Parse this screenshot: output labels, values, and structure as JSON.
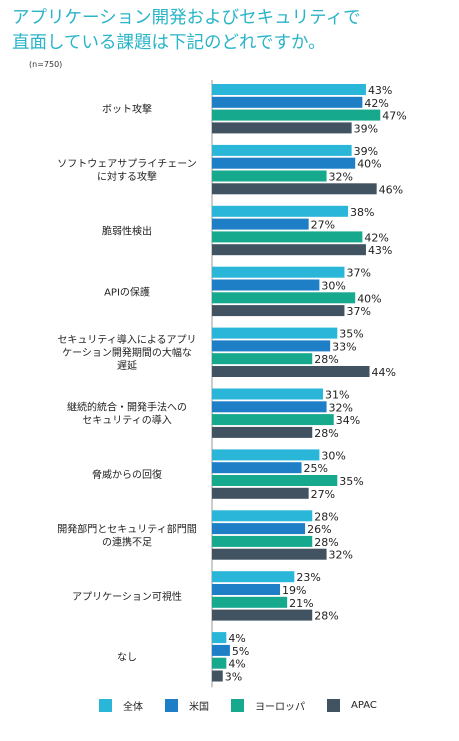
{
  "title_line1": "アプリケーション開発およびセキュリティで",
  "title_line2": "直面している課題は下記のどれですか。",
  "sample_note": "(n=750)",
  "colors": {
    "全体": "#29b6d8",
    "米国": "#1e7fc6",
    "ヨーロッパ": "#17a98d",
    "APAC": "#415361"
  },
  "chart_data": {
    "type": "bar",
    "orientation": "horizontal",
    "categories": [
      [
        "ボット攻撃"
      ],
      [
        "ソフトウェアサプライチェーン",
        "に対する攻撃"
      ],
      [
        "脆弱性検出"
      ],
      [
        "APIの保護"
      ],
      [
        "セキュリティ導入によるアプリ",
        "ケーション開発期間の大幅な",
        "遅延"
      ],
      [
        "継続的統合・開発手法への",
        "セキュリティの導入"
      ],
      [
        "脅威からの回復"
      ],
      [
        "開発部門とセキュリティ部門間",
        "の連携不足"
      ],
      [
        "アプリケーション可視性"
      ],
      [
        "なし"
      ]
    ],
    "series": [
      {
        "name": "全体",
        "values": [
          43,
          39,
          38,
          37,
          35,
          31,
          30,
          28,
          23,
          4
        ]
      },
      {
        "name": "米国",
        "values": [
          42,
          40,
          27,
          30,
          33,
          32,
          25,
          26,
          19,
          5
        ]
      },
      {
        "name": "ヨーロッパ",
        "values": [
          47,
          32,
          42,
          40,
          28,
          34,
          35,
          28,
          21,
          4
        ]
      },
      {
        "name": "APAC",
        "values": [
          39,
          46,
          43,
          37,
          44,
          28,
          27,
          32,
          28,
          3
        ]
      }
    ],
    "value_suffix": "%",
    "legend_position": "bottom",
    "grid": false
  }
}
